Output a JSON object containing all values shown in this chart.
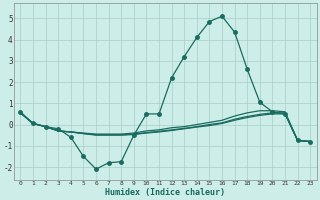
{
  "xlabel": "Humidex (Indice chaleur)",
  "bg_color": "#cdeee8",
  "grid_color": "#a8ccc6",
  "line_color": "#1a6b60",
  "xlim": [
    -0.5,
    23.5
  ],
  "ylim": [
    -2.6,
    5.7
  ],
  "xticks": [
    0,
    1,
    2,
    3,
    4,
    5,
    6,
    7,
    8,
    9,
    10,
    11,
    12,
    13,
    14,
    15,
    16,
    17,
    18,
    19,
    20,
    21,
    22,
    23
  ],
  "yticks": [
    -2,
    -1,
    0,
    1,
    2,
    3,
    4,
    5
  ],
  "line1_x": [
    0,
    1,
    2,
    3,
    4,
    5,
    6,
    7,
    8,
    9,
    10,
    11,
    12,
    13,
    14,
    15,
    16,
    17,
    18,
    19,
    20,
    21,
    22,
    23
  ],
  "line1_y": [
    0.6,
    0.05,
    -0.1,
    -0.2,
    -0.6,
    -1.5,
    -2.1,
    -1.8,
    -1.75,
    -0.5,
    0.5,
    0.5,
    2.2,
    3.2,
    4.1,
    4.85,
    5.1,
    4.35,
    2.6,
    1.05,
    0.6,
    0.5,
    -0.75,
    -0.8
  ],
  "line2_x": [
    0,
    1,
    2,
    3,
    4,
    5,
    6,
    7,
    8,
    9,
    10,
    11,
    12,
    13,
    14,
    15,
    16,
    17,
    18,
    19,
    20,
    21,
    22,
    23
  ],
  "line2_y": [
    0.55,
    0.05,
    -0.1,
    -0.3,
    -0.35,
    -0.4,
    -0.45,
    -0.45,
    -0.45,
    -0.4,
    -0.3,
    -0.25,
    -0.15,
    -0.1,
    -0.0,
    0.1,
    0.2,
    0.4,
    0.55,
    0.65,
    0.65,
    0.6,
    -0.75,
    -0.8
  ],
  "line3_x": [
    0,
    1,
    2,
    3,
    4,
    5,
    6,
    7,
    8,
    9,
    10,
    11,
    12,
    13,
    14,
    15,
    16,
    17,
    18,
    19,
    20,
    21,
    22,
    23
  ],
  "line3_y": [
    0.55,
    0.05,
    -0.1,
    -0.3,
    -0.35,
    -0.42,
    -0.48,
    -0.48,
    -0.48,
    -0.45,
    -0.38,
    -0.32,
    -0.25,
    -0.18,
    -0.1,
    0.0,
    0.08,
    0.25,
    0.38,
    0.48,
    0.55,
    0.55,
    -0.75,
    -0.8
  ],
  "line4_x": [
    0,
    1,
    2,
    3,
    4,
    5,
    6,
    7,
    8,
    9,
    10,
    11,
    12,
    13,
    14,
    15,
    16,
    17,
    18,
    19,
    20,
    21,
    22,
    23
  ],
  "line4_y": [
    0.55,
    0.05,
    -0.1,
    -0.3,
    -0.35,
    -0.43,
    -0.5,
    -0.5,
    -0.5,
    -0.47,
    -0.4,
    -0.35,
    -0.28,
    -0.2,
    -0.12,
    -0.05,
    0.05,
    0.2,
    0.33,
    0.43,
    0.5,
    0.5,
    -0.75,
    -0.8
  ],
  "marker_size": 2.5
}
